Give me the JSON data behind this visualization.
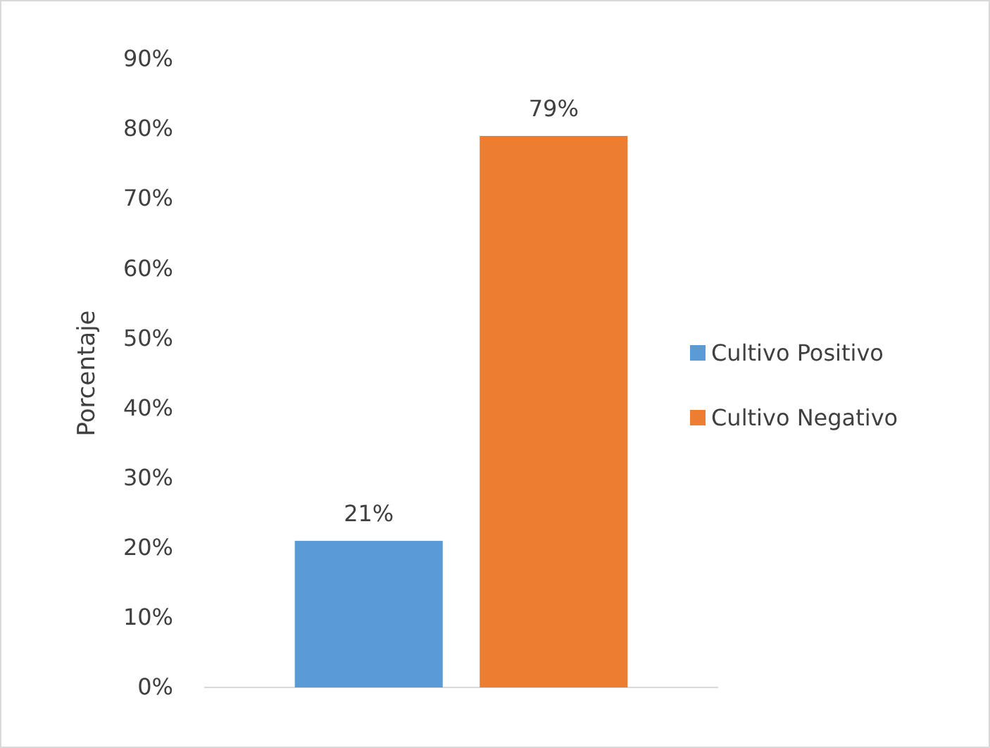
{
  "chart_data": {
    "type": "bar",
    "ylabel": "Porcentaje",
    "categories": [
      null
    ],
    "series": [
      {
        "name": "Cultivo Positivo",
        "color": "#5b9bd5",
        "values": [
          21
        ],
        "value_labels": [
          "21%"
        ]
      },
      {
        "name": "Cultivo Negativo",
        "color": "#ed7d31",
        "values": [
          79
        ],
        "value_labels": [
          "79%"
        ]
      }
    ],
    "ylim": [
      0,
      90
    ],
    "yticks": [
      {
        "value": 0,
        "label": "0%"
      },
      {
        "value": 10,
        "label": "10%"
      },
      {
        "value": 20,
        "label": "20%"
      },
      {
        "value": 30,
        "label": "30%"
      },
      {
        "value": 40,
        "label": "40%"
      },
      {
        "value": 50,
        "label": "50%"
      },
      {
        "value": 60,
        "label": "60%"
      },
      {
        "value": 70,
        "label": "70%"
      },
      {
        "value": 80,
        "label": "80%"
      },
      {
        "value": 90,
        "label": "90%"
      }
    ],
    "grid": false,
    "legend": "right"
  }
}
